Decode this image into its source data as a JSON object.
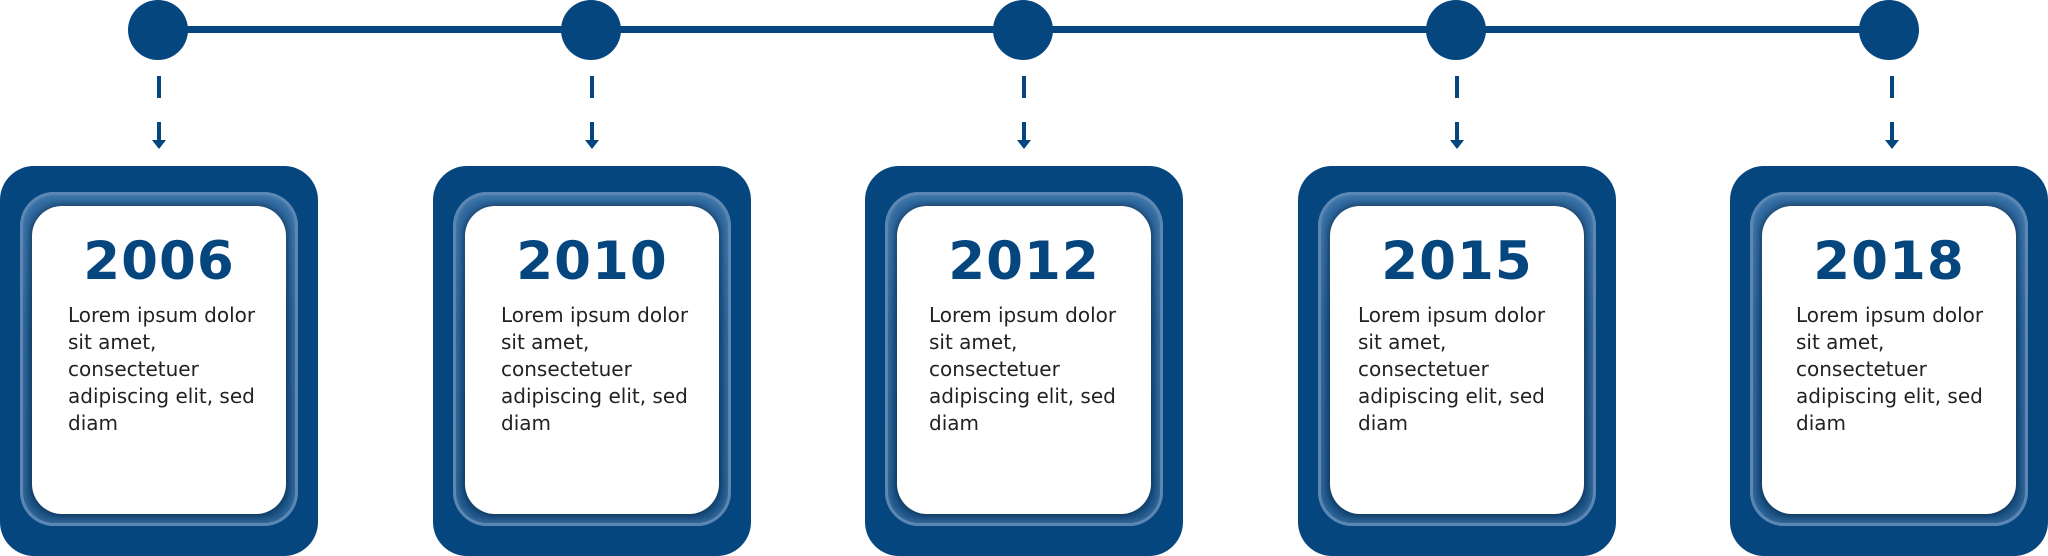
{
  "timeline": {
    "accent_color": "#05467f",
    "milestones": [
      {
        "year": "2006",
        "text": "Lorem ipsum dolor sit amet, consectetuer adipiscing elit, sed diam"
      },
      {
        "year": "2010",
        "text": "Lorem ipsum dolor sit amet, consectetuer adipiscing elit, sed diam"
      },
      {
        "year": "2012",
        "text": "Lorem ipsum dolor sit amet, consectetuer adipiscing elit, sed diam"
      },
      {
        "year": "2015",
        "text": "Lorem ipsum dolor sit amet, consectetuer adipiscing elit, sed diam"
      },
      {
        "year": "2018",
        "text": "Lorem ipsum dolor sit amet, consectetuer adipiscing elit, sed diam"
      }
    ]
  }
}
